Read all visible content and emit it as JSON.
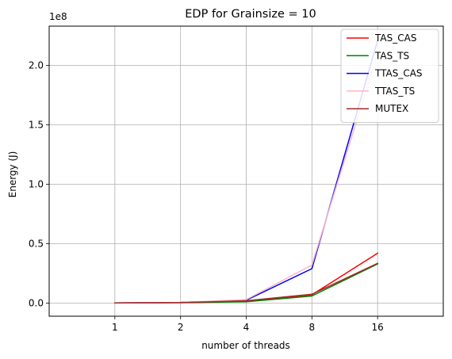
{
  "chart_data": {
    "type": "line",
    "title": "EDP for Grainsize = 10",
    "xlabel": "number of threads",
    "ylabel": "Energy (J)",
    "y_offset_label": "1e8",
    "x_scale": "categorical",
    "categories": [
      "1",
      "2",
      "4",
      "8",
      "16"
    ],
    "xlim": [
      -1,
      5
    ],
    "ylim": [
      -11000000.0,
      233000000.0
    ],
    "y_ticks": [
      0,
      50000000.0,
      100000000.0,
      150000000.0,
      200000000.0
    ],
    "y_tick_labels": [
      "0.0",
      "0.5",
      "1.0",
      "1.5",
      "2.0"
    ],
    "grid": true,
    "legend_position": "top-right",
    "series": [
      {
        "name": "TAS_CAS",
        "color": "#ff0000",
        "values": [
          200000,
          400000,
          1500000,
          7000000,
          42000000
        ]
      },
      {
        "name": "TAS_TS",
        "color": "#008000",
        "values": [
          200000,
          400000,
          1200000,
          6000000,
          33000000
        ]
      },
      {
        "name": "TTAS_CAS",
        "color": "#0000ff",
        "values": [
          200000,
          600000,
          2500000,
          29000000,
          221000000
        ]
      },
      {
        "name": "TTAS_TS",
        "color": "#ffb6c1",
        "values": [
          200000,
          600000,
          3000000,
          32000000,
          210000000
        ]
      },
      {
        "name": "MUTEX",
        "color": "#a52a2a",
        "values": [
          200000,
          500000,
          2000000,
          7500000,
          33500000
        ]
      }
    ]
  }
}
